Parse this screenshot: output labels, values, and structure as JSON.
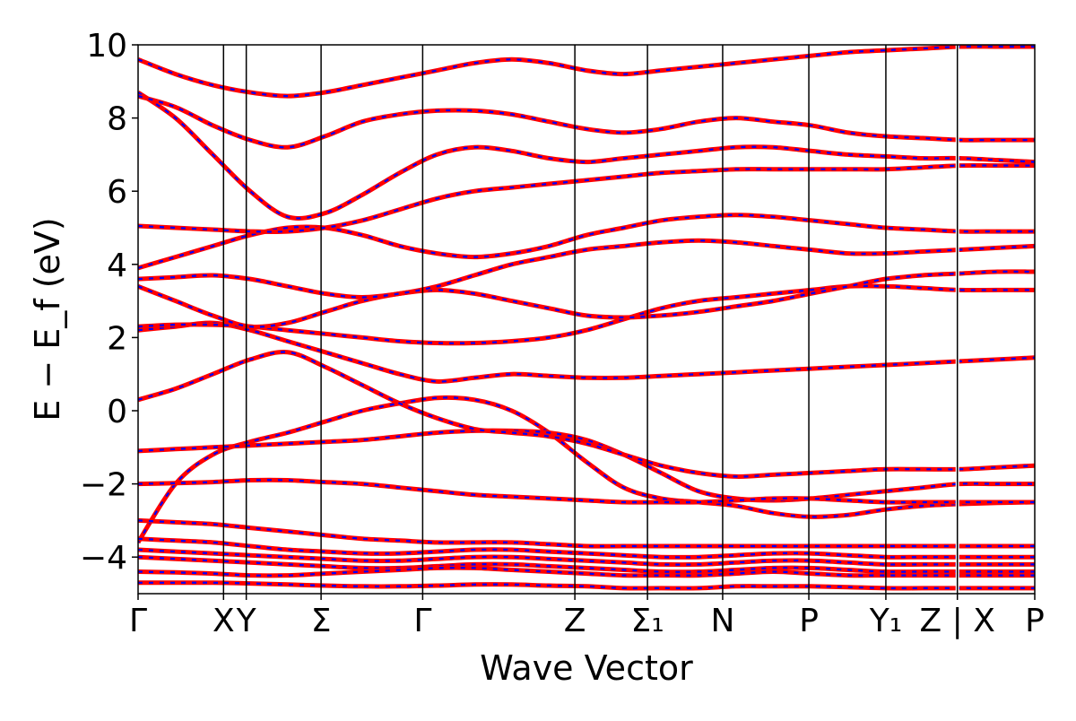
{
  "chart_data": {
    "type": "line",
    "title": "",
    "xlabel": "Wave Vector",
    "ylabel": "E − E_f (eV)",
    "ylim": [
      -5,
      10
    ],
    "yticks": [
      -4,
      -2,
      0,
      2,
      4,
      6,
      8,
      10
    ],
    "ytick_labels": [
      "−4",
      "−2",
      "0",
      "2",
      "4",
      "6",
      "8",
      "10"
    ],
    "x_range": [
      0,
      24.45
    ],
    "high_symmetry_points": [
      {
        "x": 0,
        "label": "Γ"
      },
      {
        "x": 2.33,
        "label": "X"
      },
      {
        "x": 2.95,
        "label": "Y"
      },
      {
        "x": 4.99,
        "label": "Σ"
      },
      {
        "x": 7.76,
        "label": "Γ"
      },
      {
        "x": 11.91,
        "label": "Z"
      },
      {
        "x": 13.89,
        "label": "Σ₁"
      },
      {
        "x": 15.94,
        "label": "N"
      },
      {
        "x": 18.29,
        "label": "P"
      },
      {
        "x": 20.39,
        "label": "Y₁"
      },
      {
        "x": 22.34,
        "label": "Z | X"
      },
      {
        "x": 24.45,
        "label": "P"
      }
    ],
    "segment_break_x": 22.34,
    "grid": false,
    "series_styles": [
      {
        "color": "#ff0000",
        "style": "solid"
      },
      {
        "color": "#0000ff",
        "style": "dashed"
      }
    ],
    "series": [
      {
        "values": [
          -3.6,
          -2.0,
          -1.2,
          -0.85,
          -0.6,
          -0.3,
          0.0,
          0.2,
          0.35,
          0.3,
          0.0,
          -0.6,
          -1.4,
          -2.1,
          -2.4,
          -2.5,
          -2.6,
          -2.8,
          -2.9,
          -2.85,
          -2.7,
          -2.6,
          -2.55,
          -2.52,
          -2.5
        ]
      },
      {
        "values": [
          -1.1,
          -1.05,
          -1.0,
          -0.95,
          -0.9,
          -0.85,
          -0.8,
          -0.7,
          -0.6,
          -0.55,
          -0.55,
          -0.6,
          -0.8,
          -1.2,
          -1.7,
          -2.2,
          -2.4,
          -2.45,
          -2.4,
          -2.3,
          -2.2,
          -2.1,
          -2.0,
          -2.0,
          -2.0
        ]
      },
      {
        "values": [
          0.3,
          0.6,
          1.0,
          1.4,
          1.6,
          1.2,
          0.7,
          0.2,
          -0.2,
          -0.5,
          -0.6,
          -0.7,
          -0.9,
          -1.2,
          -1.5,
          -1.7,
          -1.8,
          -1.75,
          -1.7,
          -1.65,
          -1.6,
          -1.6,
          -1.6,
          -1.55,
          -1.5
        ]
      },
      {
        "values": [
          -2.0,
          -1.98,
          -1.95,
          -1.9,
          -1.9,
          -1.95,
          -2.0,
          -2.1,
          -2.2,
          -2.3,
          -2.35,
          -2.4,
          -2.45,
          -2.5,
          -2.5,
          -2.5,
          -2.45,
          -2.4,
          -2.4,
          -2.45,
          -2.5,
          -2.5,
          -2.5,
          -2.5,
          -2.5
        ]
      },
      {
        "values": [
          2.2,
          2.3,
          2.4,
          2.2,
          1.9,
          1.6,
          1.3,
          1.0,
          0.8,
          0.9,
          1.0,
          0.95,
          0.9,
          0.9,
          0.95,
          1.0,
          1.05,
          1.1,
          1.15,
          1.2,
          1.25,
          1.3,
          1.35,
          1.4,
          1.45
        ]
      },
      {
        "values": [
          2.3,
          2.35,
          2.35,
          2.3,
          2.2,
          2.1,
          2.0,
          1.9,
          1.85,
          1.85,
          1.9,
          2.0,
          2.2,
          2.5,
          2.8,
          3.0,
          3.1,
          3.2,
          3.3,
          3.4,
          3.4,
          3.35,
          3.3,
          3.3,
          3.3
        ]
      },
      {
        "values": [
          3.4,
          3.0,
          2.6,
          2.3,
          2.4,
          2.7,
          3.0,
          3.2,
          3.3,
          3.2,
          3.0,
          2.8,
          2.6,
          2.55,
          2.6,
          2.7,
          2.85,
          3.0,
          3.2,
          3.4,
          3.6,
          3.7,
          3.75,
          3.8,
          3.8
        ]
      },
      {
        "values": [
          3.6,
          3.65,
          3.7,
          3.6,
          3.4,
          3.2,
          3.1,
          3.2,
          3.4,
          3.7,
          4.0,
          4.2,
          4.4,
          4.5,
          4.6,
          4.65,
          4.6,
          4.5,
          4.4,
          4.3,
          4.3,
          4.35,
          4.4,
          4.45,
          4.5
        ]
      },
      {
        "values": [
          3.9,
          4.2,
          4.5,
          4.8,
          5.0,
          5.0,
          4.8,
          4.5,
          4.3,
          4.2,
          4.3,
          4.5,
          4.8,
          5.0,
          5.2,
          5.3,
          5.35,
          5.3,
          5.2,
          5.1,
          5.0,
          4.95,
          4.9,
          4.9,
          4.9
        ]
      },
      {
        "values": [
          5.05,
          5.0,
          4.95,
          4.9,
          4.9,
          5.0,
          5.2,
          5.5,
          5.8,
          6.0,
          6.1,
          6.2,
          6.3,
          6.4,
          6.5,
          6.55,
          6.6,
          6.6,
          6.6,
          6.6,
          6.6,
          6.65,
          6.7,
          6.7,
          6.7
        ]
      },
      {
        "values": [
          8.7,
          8.0,
          7.0,
          6.0,
          5.3,
          5.4,
          5.9,
          6.5,
          7.0,
          7.2,
          7.1,
          6.9,
          6.8,
          6.9,
          7.0,
          7.1,
          7.2,
          7.2,
          7.1,
          7.0,
          6.95,
          6.9,
          6.9,
          6.85,
          6.8
        ]
      },
      {
        "values": [
          8.6,
          8.3,
          7.8,
          7.4,
          7.2,
          7.5,
          7.9,
          8.1,
          8.2,
          8.2,
          8.1,
          7.9,
          7.7,
          7.6,
          7.7,
          7.9,
          8.0,
          7.9,
          7.8,
          7.6,
          7.5,
          7.45,
          7.4,
          7.4,
          7.4
        ]
      },
      {
        "values": [
          9.6,
          9.2,
          8.9,
          8.7,
          8.6,
          8.7,
          8.9,
          9.1,
          9.3,
          9.5,
          9.6,
          9.5,
          9.3,
          9.2,
          9.3,
          9.4,
          9.5,
          9.6,
          9.7,
          9.8,
          9.85,
          9.9,
          9.95,
          9.95,
          9.95
        ]
      },
      {
        "values": [
          -3.0,
          -3.05,
          -3.1,
          -3.2,
          -3.3,
          -3.4,
          -3.5,
          -3.55,
          -3.6,
          -3.6,
          -3.6,
          -3.65,
          -3.7,
          -3.7,
          -3.7,
          -3.7,
          -3.7,
          -3.7,
          -3.7,
          -3.7,
          -3.7,
          -3.7,
          -3.7,
          -3.7,
          -3.7
        ]
      },
      {
        "values": [
          -3.5,
          -3.55,
          -3.6,
          -3.7,
          -3.8,
          -3.85,
          -3.9,
          -3.9,
          -3.85,
          -3.8,
          -3.8,
          -3.85,
          -3.9,
          -3.95,
          -4.0,
          -4.0,
          -3.95,
          -3.9,
          -3.9,
          -3.95,
          -4.0,
          -4.0,
          -4.0,
          -4.0,
          -4.0
        ]
      },
      {
        "values": [
          -3.8,
          -3.85,
          -3.9,
          -3.95,
          -4.0,
          -4.05,
          -4.1,
          -4.1,
          -4.05,
          -4.0,
          -4.0,
          -4.05,
          -4.1,
          -4.15,
          -4.2,
          -4.2,
          -4.15,
          -4.1,
          -4.1,
          -4.15,
          -4.2,
          -4.2,
          -4.2,
          -4.2,
          -4.2
        ]
      },
      {
        "values": [
          -4.0,
          -4.05,
          -4.1,
          -4.15,
          -4.2,
          -4.25,
          -4.3,
          -4.3,
          -4.25,
          -4.2,
          -4.2,
          -4.25,
          -4.3,
          -4.35,
          -4.4,
          -4.4,
          -4.35,
          -4.3,
          -4.3,
          -4.35,
          -4.4,
          -4.4,
          -4.4,
          -4.4,
          -4.4
        ]
      },
      {
        "values": [
          -4.4,
          -4.42,
          -4.45,
          -4.5,
          -4.5,
          -4.45,
          -4.4,
          -4.35,
          -4.3,
          -4.3,
          -4.35,
          -4.4,
          -4.45,
          -4.5,
          -4.5,
          -4.5,
          -4.45,
          -4.4,
          -4.45,
          -4.5,
          -4.5,
          -4.5,
          -4.5,
          -4.5,
          -4.5
        ]
      },
      {
        "values": [
          -4.7,
          -4.7,
          -4.7,
          -4.72,
          -4.75,
          -4.78,
          -4.8,
          -4.8,
          -4.78,
          -4.75,
          -4.75,
          -4.78,
          -4.8,
          -4.85,
          -4.85,
          -4.85,
          -4.8,
          -4.8,
          -4.8,
          -4.82,
          -4.85,
          -4.85,
          -4.85,
          -4.85,
          -4.85
        ]
      }
    ]
  }
}
